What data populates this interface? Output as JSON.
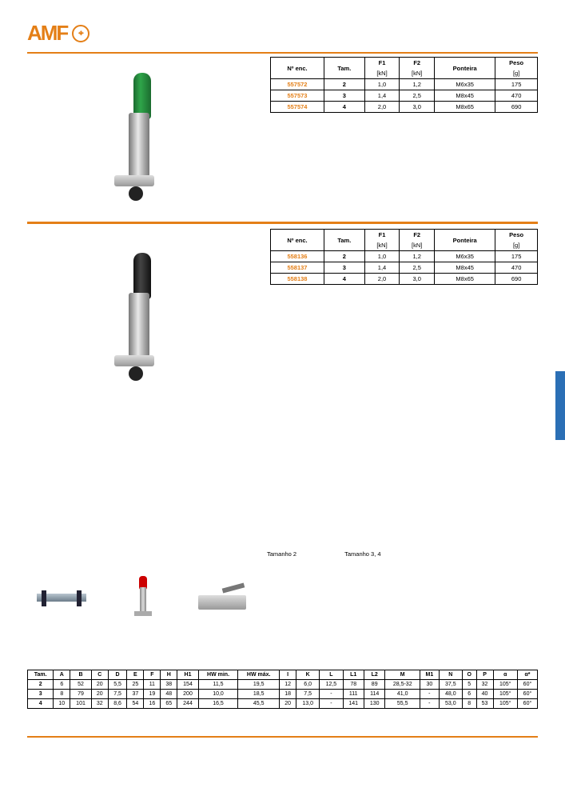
{
  "brand": {
    "name": "AMF",
    "symbol": "⦿"
  },
  "colors": {
    "accent": "#e47f17",
    "tab": "#2b6fb5",
    "text": "#000000",
    "bg": "#ffffff"
  },
  "tables": {
    "spec_headers": {
      "enc": "Nº\nenc.",
      "tam": "Tam.",
      "f1": "F1",
      "f2": "F2",
      "ponteira": "Ponteira",
      "peso": "Peso"
    },
    "spec_units": {
      "f1": "[kN]",
      "f2": "[kN]",
      "peso": "[g]"
    },
    "spec1": [
      {
        "enc": "557572",
        "tam": "2",
        "f1": "1,0",
        "f2": "1,2",
        "ponteira": "M6x35",
        "peso": "175"
      },
      {
        "enc": "557573",
        "tam": "3",
        "f1": "1,4",
        "f2": "2,5",
        "ponteira": "M8x45",
        "peso": "470"
      },
      {
        "enc": "557574",
        "tam": "4",
        "f1": "2,0",
        "f2": "3,0",
        "ponteira": "M8x65",
        "peso": "690"
      }
    ],
    "spec2": [
      {
        "enc": "558136",
        "tam": "2",
        "f1": "1,0",
        "f2": "1,2",
        "ponteira": "M6x35",
        "peso": "175"
      },
      {
        "enc": "558137",
        "tam": "3",
        "f1": "1,4",
        "f2": "2,5",
        "ponteira": "M8x45",
        "peso": "470"
      },
      {
        "enc": "558138",
        "tam": "4",
        "f1": "2,0",
        "f2": "3,0",
        "ponteira": "M8x65",
        "peso": "690"
      }
    ],
    "dim_size_labels": {
      "a": "Tamanho 2",
      "b": "Tamanho 3, 4"
    },
    "dim_headers": [
      "Tam.",
      "A",
      "B",
      "C",
      "D",
      "E",
      "F",
      "H",
      "H1",
      "HW min.",
      "HW máx.",
      "I",
      "K",
      "L",
      "L1",
      "L2",
      "M",
      "M1",
      "N",
      "O",
      "P",
      "α",
      "α*"
    ],
    "dims": [
      [
        "2",
        "6",
        "52",
        "20",
        "5,5",
        "25",
        "11",
        "38",
        "154",
        "11,5",
        "19,5",
        "12",
        "6,0",
        "12,5",
        "78",
        "89",
        "28,5-32",
        "30",
        "37,5",
        "5",
        "32",
        "105°",
        "60°"
      ],
      [
        "3",
        "8",
        "79",
        "20",
        "7,5",
        "37",
        "19",
        "48",
        "200",
        "10,0",
        "18,5",
        "18",
        "7,5",
        "-",
        "111",
        "114",
        "41,0",
        "-",
        "48,0",
        "6",
        "40",
        "105°",
        "60°"
      ],
      [
        "4",
        "10",
        "101",
        "32",
        "8,6",
        "54",
        "16",
        "65",
        "244",
        "16,5",
        "45,5",
        "20",
        "13,0",
        "-",
        "141",
        "130",
        "55,5",
        "-",
        "53,0",
        "8",
        "53",
        "105°",
        "60°"
      ]
    ]
  }
}
